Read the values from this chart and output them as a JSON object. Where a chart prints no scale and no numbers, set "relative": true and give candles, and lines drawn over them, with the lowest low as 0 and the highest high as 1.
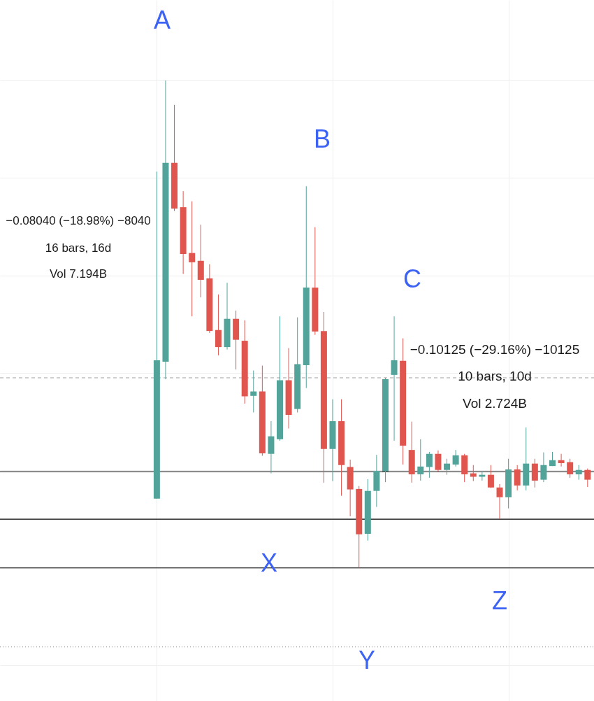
{
  "chart_data": {
    "type": "candlestick",
    "relative": true,
    "grid": true,
    "categories": [
      null,
      null,
      null,
      null,
      null,
      null,
      null,
      null,
      null,
      null,
      null,
      null,
      null,
      null,
      null,
      null,
      null,
      null,
      null,
      null,
      null,
      null,
      null,
      null,
      null,
      null,
      null,
      null,
      null,
      null,
      null,
      null,
      null,
      null,
      null,
      null,
      null,
      null,
      null,
      null,
      null,
      null,
      null,
      null,
      null,
      null,
      null,
      null,
      null,
      null
    ],
    "ohlc": [
      [
        0.142,
        0.813,
        0.142,
        0.426
      ],
      [
        0.423,
        1,
        0.387,
        0.831
      ],
      [
        0.831,
        0.95,
        0.732,
        0.737
      ],
      [
        0.74,
        0.773,
        0.603,
        0.644
      ],
      [
        0.646,
        0.752,
        0.516,
        0.627
      ],
      [
        0.63,
        0.704,
        0.555,
        0.591
      ],
      [
        0.594,
        0.623,
        0.482,
        0.486
      ],
      [
        0.488,
        0.561,
        0.436,
        0.453
      ],
      [
        0.453,
        0.585,
        0.448,
        0.511
      ],
      [
        0.511,
        0.528,
        0.407,
        0.468
      ],
      [
        0.466,
        0.508,
        0.337,
        0.352
      ],
      [
        0.353,
        0.405,
        0.319,
        0.362
      ],
      [
        0.362,
        0.415,
        0.23,
        0.235
      ],
      [
        0.234,
        0.301,
        0.194,
        0.27
      ],
      [
        0.264,
        0.516,
        0.261,
        0.385
      ],
      [
        0.385,
        0.451,
        0.286,
        0.314
      ],
      [
        0.326,
        0.514,
        0.319,
        0.418
      ],
      [
        0.416,
        0.783,
        0.369,
        0.575
      ],
      [
        0.575,
        0.699,
        0.478,
        0.485
      ],
      [
        0.486,
        0.525,
        0.175,
        0.244
      ],
      [
        0.244,
        0.346,
        0.178,
        0.301
      ],
      [
        0.301,
        0.346,
        0.148,
        0.211
      ],
      [
        0.207,
        0.222,
        0.106,
        0.161
      ],
      [
        0.162,
        0.168,
        0,
        0.069
      ],
      [
        0.07,
        0.182,
        0.056,
        0.158
      ],
      [
        0.158,
        0.232,
        0.125,
        0.199
      ],
      [
        0.198,
        0.39,
        0.176,
        0.387
      ],
      [
        0.396,
        0.516,
        0.261,
        0.426
      ],
      [
        0.425,
        0.471,
        0.212,
        0.251
      ],
      [
        0.242,
        0.3,
        0.175,
        0.192
      ],
      [
        0.192,
        0.264,
        0.179,
        0.208
      ],
      [
        0.207,
        0.238,
        0.185,
        0.234
      ],
      [
        0.234,
        0.241,
        0.197,
        0.201
      ],
      [
        0.201,
        0.224,
        0.191,
        0.214
      ],
      [
        0.212,
        0.242,
        0.208,
        0.231
      ],
      [
        0.231,
        0.234,
        0.176,
        0.192
      ],
      [
        0.194,
        0.211,
        0.178,
        0.187
      ],
      [
        0.187,
        0.199,
        0.179,
        0.191
      ],
      [
        0.191,
        0.211,
        0.164,
        0.165
      ],
      [
        0.165,
        0.172,
        0.1,
        0.145
      ],
      [
        0.145,
        0.224,
        0.122,
        0.202
      ],
      [
        0.202,
        0.211,
        0.159,
        0.169
      ],
      [
        0.169,
        0.288,
        0.159,
        0.214
      ],
      [
        0.214,
        0.224,
        0.165,
        0.179
      ],
      [
        0.181,
        0.237,
        0.176,
        0.211
      ],
      [
        0.209,
        0.238,
        0.209,
        0.221
      ],
      [
        0.221,
        0.234,
        0.208,
        0.215
      ],
      [
        0.217,
        0.224,
        0.185,
        0.192
      ],
      [
        0.192,
        0.211,
        0.181,
        0.201
      ],
      [
        0.201,
        0.204,
        0.166,
        0.181
      ]
    ],
    "colors": [
      "#52a49a",
      "#52a49a",
      "#e0564f",
      "#e0564f",
      "#e0564f",
      "#e0564f",
      "#e0564f",
      "#e0564f",
      "#52a49a",
      "#e0564f",
      "#e0564f",
      "#52a49a",
      "#e0564f",
      "#52a49a",
      "#52a49a",
      "#e0564f",
      "#52a49a",
      "#52a49a",
      "#e0564f",
      "#e0564f",
      "#52a49a",
      "#e0564f",
      "#e0564f",
      "#e0564f",
      "#52a49a",
      "#52a49a",
      "#52a49a",
      "#52a49a",
      "#e0564f",
      "#e0564f",
      "#52a49a",
      "#52a49a",
      "#e0564f",
      "#52a49a",
      "#52a49a",
      "#e0564f",
      "#e0564f",
      "#52a49a",
      "#e0564f",
      "#e0564f",
      "#52a49a",
      "#e0564f",
      "#52a49a",
      "#e0564f",
      "#52a49a",
      "#52a49a",
      "#e0564f",
      "#e0564f",
      "#52a49a",
      "#e0564f"
    ],
    "ref_lines": [
      {
        "axis": "y",
        "value": 0.197,
        "color": "#000000",
        "line_style": "solid"
      },
      {
        "axis": "y",
        "value": 0.1,
        "color": "#000000",
        "line_style": "solid"
      },
      {
        "axis": "y",
        "value": 0,
        "color": "#000000",
        "line_style": "solid"
      },
      {
        "axis": "y",
        "value": 0.39,
        "color": "#9e9e9e",
        "line_style": "dashed"
      },
      {
        "axis": "y",
        "value": -0.162,
        "color": "#9e9e9e",
        "line_style": "dotted"
      }
    ],
    "annotations": [
      "A",
      "B",
      "C",
      "X",
      "Y",
      "Z",
      "−0.08040 (−18.98%) −8040",
      "16 bars, 16d",
      "Vol 7.194B",
      "−0.10125 (−29.16%) −10125",
      "10 bars, 10d",
      "Vol 2.724B"
    ]
  }
}
